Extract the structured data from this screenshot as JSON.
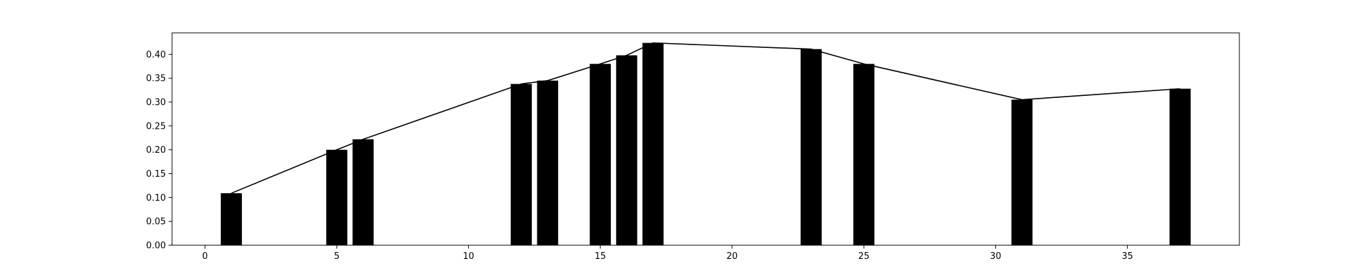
{
  "chart_data": {
    "type": "bar",
    "title": "",
    "xlabel": "",
    "ylabel": "",
    "xlim": [
      -1.25,
      39.25
    ],
    "ylim": [
      0,
      0.445
    ],
    "grid": false,
    "xticks": [
      0,
      5,
      10,
      15,
      20,
      25,
      30,
      35
    ],
    "yticks": [
      0.0,
      0.05,
      0.1,
      0.15,
      0.2,
      0.25,
      0.3,
      0.35,
      0.4
    ],
    "bar_width": 0.8,
    "bar_color": "#000000",
    "line_color": "#000000",
    "x": [
      1,
      5,
      6,
      12,
      13,
      15,
      16,
      17,
      23,
      25,
      31,
      37
    ],
    "values": [
      0.109,
      0.2,
      0.222,
      0.338,
      0.345,
      0.38,
      0.398,
      0.424,
      0.411,
      0.38,
      0.305,
      0.328
    ],
    "overlay_line": {
      "type": "line",
      "x": [
        1,
        5,
        6,
        12,
        13,
        15,
        16,
        17,
        23,
        25,
        31,
        37
      ],
      "values": [
        0.109,
        0.2,
        0.222,
        0.338,
        0.345,
        0.38,
        0.398,
        0.424,
        0.411,
        0.38,
        0.305,
        0.328
      ]
    }
  }
}
